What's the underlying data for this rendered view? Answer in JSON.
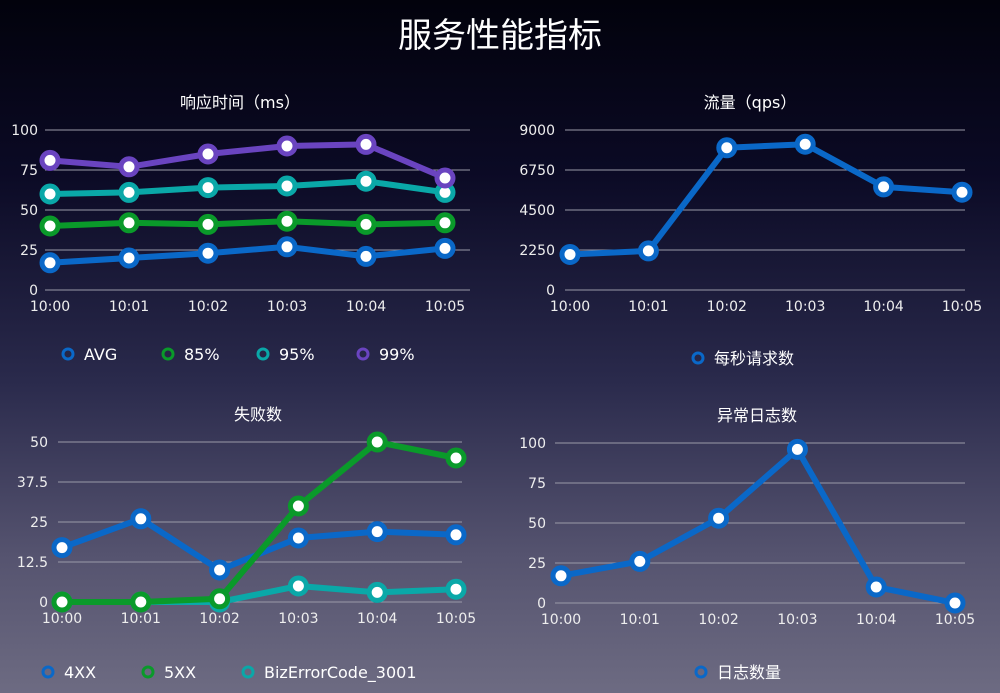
{
  "title": "服务性能指标",
  "chart_data": [
    {
      "type": "line",
      "title": "响应时间（ms）",
      "categories": [
        "10:00",
        "10:01",
        "10:02",
        "10:03",
        "10:04",
        "10:05"
      ],
      "ylim": [
        0,
        100
      ],
      "yticks": [
        "0",
        "25",
        "50",
        "75",
        "100"
      ],
      "grid": true,
      "legend": "bottom",
      "series": [
        {
          "name": "AVG",
          "color": "#0a68c8",
          "values": [
            17,
            20,
            23,
            27,
            21,
            26
          ]
        },
        {
          "name": "85%",
          "color": "#0a9a2a",
          "values": [
            40,
            42,
            41,
            43,
            41,
            42
          ]
        },
        {
          "name": "95%",
          "color": "#0aa8a8",
          "values": [
            60,
            61,
            64,
            65,
            68,
            61
          ]
        },
        {
          "name": "99%",
          "color": "#6a44c0",
          "values": [
            81,
            77,
            85,
            90,
            91,
            70
          ]
        }
      ]
    },
    {
      "type": "line",
      "title": "流量（qps）",
      "categories": [
        "10:00",
        "10:01",
        "10:02",
        "10:03",
        "10:04",
        "10:05"
      ],
      "ylim": [
        0,
        9000
      ],
      "yticks": [
        "0",
        "2250",
        "4500",
        "6750",
        "9000"
      ],
      "grid": true,
      "legend": "bottom",
      "series": [
        {
          "name": "每秒请求数",
          "color": "#0a68c8",
          "values": [
            2000,
            2200,
            8000,
            8200,
            5800,
            5500
          ]
        }
      ]
    },
    {
      "type": "line",
      "title": "失败数",
      "categories": [
        "10:00",
        "10:01",
        "10:02",
        "10:03",
        "10:04",
        "10:05"
      ],
      "ylim": [
        0,
        50
      ],
      "yticks": [
        "0",
        "12.5",
        "25",
        "37.5",
        "50"
      ],
      "grid": true,
      "legend": "bottom",
      "series": [
        {
          "name": "4XX",
          "color": "#0a68c8",
          "values": [
            17,
            26,
            10,
            20,
            22,
            21
          ]
        },
        {
          "name": "BizErrorCode_3001",
          "color": "#0aa8a8",
          "values": [
            0,
            0,
            0,
            5,
            3,
            4
          ]
        },
        {
          "name": "5XX",
          "color": "#0a9a2a",
          "values": [
            0,
            0,
            1,
            30,
            50,
            45
          ]
        }
      ],
      "legend_order": [
        "4XX",
        "5XX",
        "BizErrorCode_3001"
      ]
    },
    {
      "type": "line",
      "title": "异常日志数",
      "categories": [
        "10:00",
        "10:01",
        "10:02",
        "10:03",
        "10:04",
        "10:05"
      ],
      "ylim": [
        0,
        100
      ],
      "yticks": [
        "0",
        "25",
        "50",
        "75",
        "100"
      ],
      "grid": true,
      "legend": "bottom",
      "series": [
        {
          "name": "日志数量",
          "color": "#0a68c8",
          "values": [
            17,
            26,
            53,
            96,
            10,
            0
          ]
        }
      ]
    }
  ]
}
